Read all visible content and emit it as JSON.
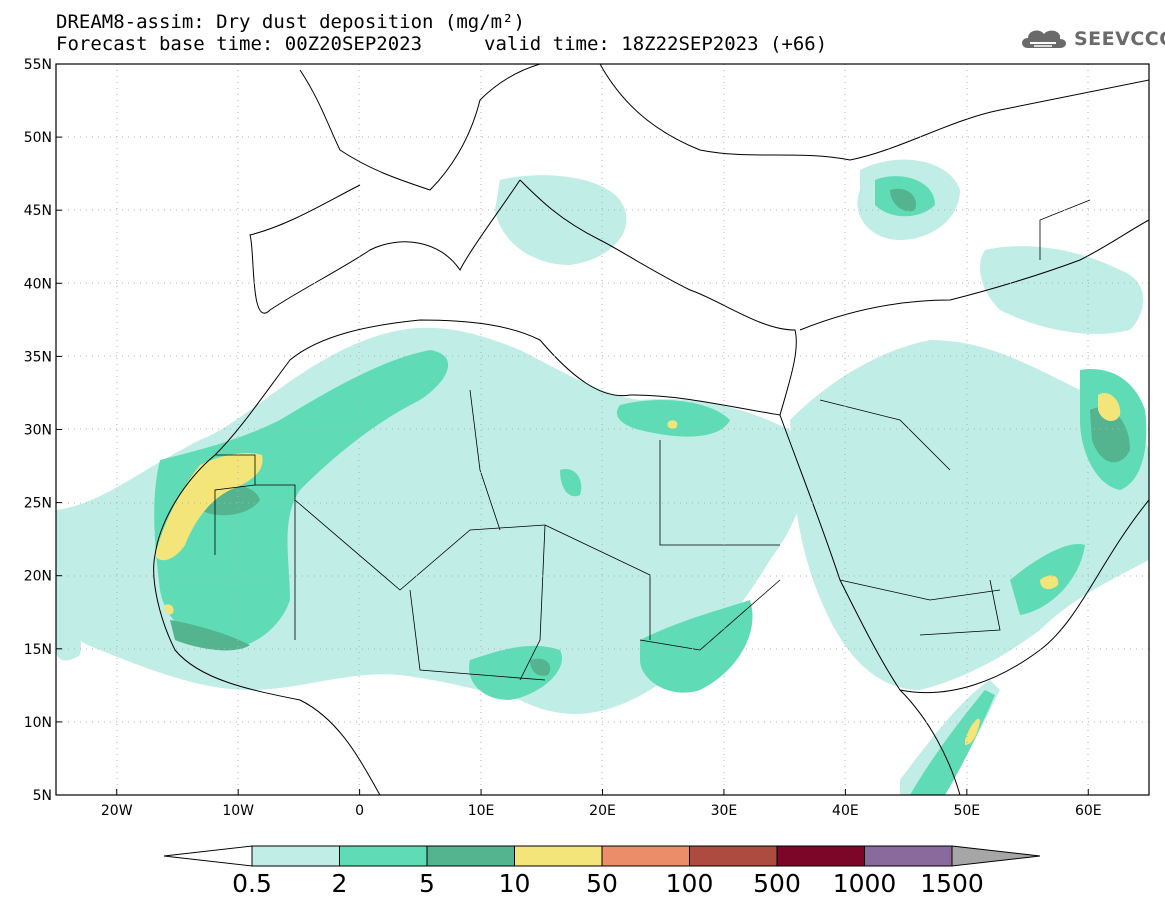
{
  "header": {
    "title": "DREAM8-assim: Dry dust deposition (mg/m²)",
    "base_time": "Forecast base time: 00Z20SEP2023",
    "valid_time": "valid time: 18Z22SEP2023 (+66)"
  },
  "logo": {
    "text": "SEEVCCC",
    "icon": "cloud-icon"
  },
  "map": {
    "lon_range": [
      -25,
      65
    ],
    "lat_range": [
      5,
      55
    ],
    "lon_ticks": [
      "20W",
      "10W",
      "0",
      "10E",
      "20E",
      "30E",
      "40E",
      "50E",
      "60E"
    ],
    "lat_ticks": [
      "55N",
      "50N",
      "45N",
      "40N",
      "35N",
      "30N",
      "25N",
      "20N",
      "15N",
      "10N",
      "5N"
    ],
    "grid": "dotted"
  },
  "legend": {
    "labels": [
      "0.5",
      "2",
      "5",
      "10",
      "50",
      "100",
      "500",
      "1000",
      "1500"
    ],
    "colors": [
      "#c0ede6",
      "#5fdcb5",
      "#54b48f",
      "#f3e57a",
      "#ea8d68",
      "#ad4b40",
      "#7c0628",
      "#8a6a9c"
    ],
    "under_color": "#ffffff",
    "over_color": "#a6a6a6"
  }
}
